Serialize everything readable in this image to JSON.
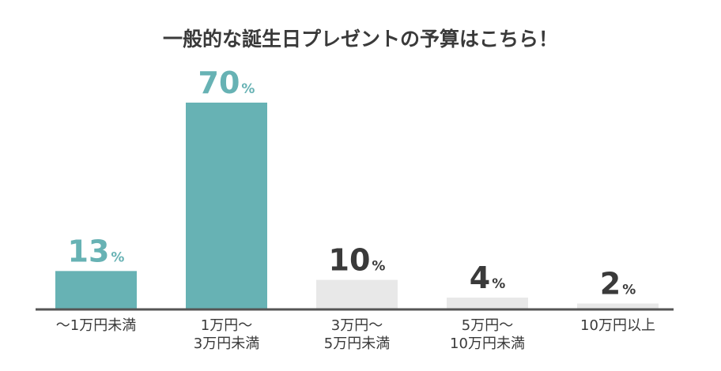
{
  "chart_data": {
    "type": "bar",
    "title": "一般的な誕生日プレゼントの予算はこちら！",
    "unit": "%",
    "categories": [
      [
        "〜1万円未満"
      ],
      [
        "1万円〜",
        "3万円未満"
      ],
      [
        "3万円〜",
        "5万円未満"
      ],
      [
        "5万円〜",
        "10万円未満"
      ],
      [
        "10万円以上"
      ]
    ],
    "values": [
      13,
      70,
      10,
      4,
      2
    ],
    "highlight": [
      true,
      true,
      false,
      false,
      false
    ],
    "ylim": [
      0,
      70
    ],
    "grid": false,
    "legend": "none"
  },
  "colors": {
    "highlight_bar": "#67b2b4",
    "muted_bar": "#e8e8e8",
    "highlight_text": "#67b2b4",
    "muted_text": "#3a3a3a",
    "baseline": "#555555"
  }
}
